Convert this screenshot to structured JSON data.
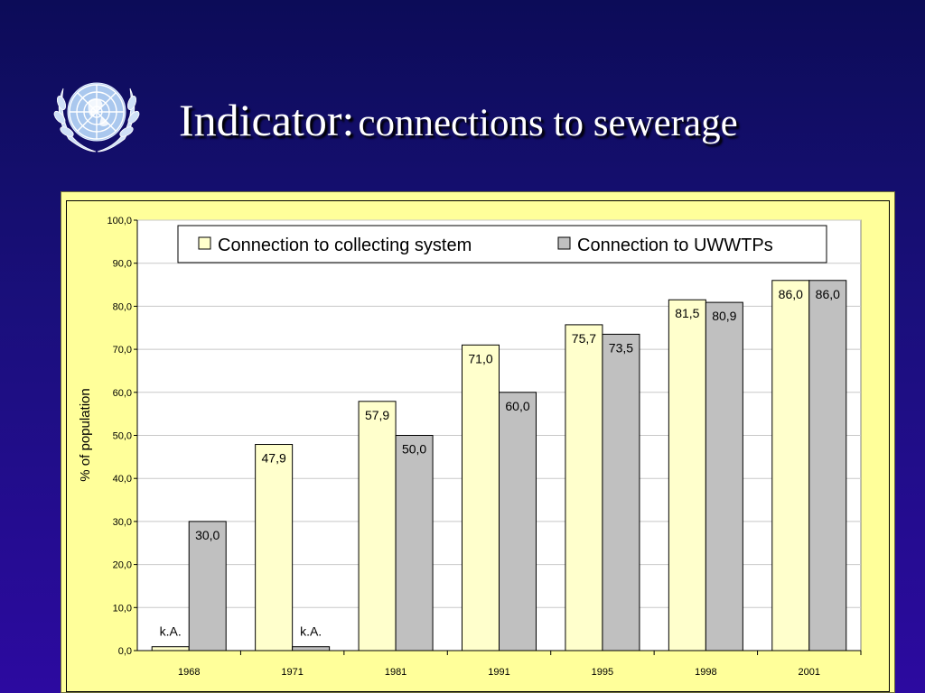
{
  "slide": {
    "title_main": "Indicator:",
    "title_sub": "connections to sewerage",
    "logo_icon": "un-emblem-icon"
  },
  "colors": {
    "background_top": "#0c0c58",
    "background_bottom": "#2c0aa0",
    "frame": "#ffff9a",
    "series_collecting": "#ffffcc",
    "series_uwwtp": "#c0c0c0"
  },
  "chart_data": {
    "type": "bar",
    "categories": [
      "1968",
      "1971",
      "1981",
      "1991",
      "1995",
      "1998",
      "2001"
    ],
    "series": [
      {
        "name": "Connection to collecting system",
        "values": [
          0.9,
          47.9,
          57.9,
          71.0,
          75.7,
          81.5,
          86.0
        ],
        "labels": [
          "k.A.",
          "47,9",
          "57,9",
          "71,0",
          "75,7",
          "81,5",
          "86,0"
        ]
      },
      {
        "name": "Connection to UWWTPs",
        "values": [
          30.0,
          0.9,
          50.0,
          60.0,
          73.5,
          80.9,
          86.0
        ],
        "labels": [
          "30,0",
          "k.A.",
          "50,0",
          "60,0",
          "73,5",
          "80,9",
          "86,0"
        ]
      }
    ],
    "ylabel": "% of population",
    "ylim": [
      0,
      100
    ],
    "yticks": [
      "0,0",
      "10,0",
      "20,0",
      "30,0",
      "40,0",
      "50,0",
      "60,0",
      "70,0",
      "80,0",
      "90,0",
      "100,0"
    ],
    "grid": true,
    "legend_position": "top"
  }
}
